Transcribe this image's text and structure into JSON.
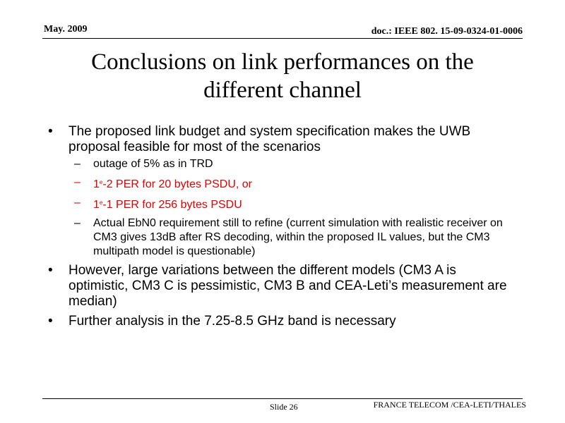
{
  "header": {
    "date": "May. 2009",
    "doc_id": "doc.: IEEE 802. 15-09-0324-01-0006"
  },
  "title": {
    "line1": "Conclusions on link performances on the",
    "line2": "different channel"
  },
  "bullets": [
    {
      "marker": "•",
      "text": "The proposed link budget and system specification makes the UWB proposal feasible for most of the scenarios",
      "subitems": [
        {
          "marker": "–",
          "text": " outage of 5% as in TRD"
        },
        {
          "marker": "–",
          "pre": "1",
          "sup": "e",
          "post": "-2  PER for 20 bytes PSDU, or",
          "color": "#e00000"
        },
        {
          "marker": "–",
          "pre": "1",
          "sup": "e",
          "post": "-1 PER for 256 bytes PSDU",
          "color": "#e00000"
        },
        {
          "marker": "–",
          "text": "Actual EbN0 requirement still to refine (current simulation with realistic receiver on CM3 gives 13dB after RS decoding, within the proposed IL values, but the CM3 multipath model is questionable)"
        }
      ]
    },
    {
      "marker": "•",
      "text": "However, large variations between the different models (CM3 A is optimistic, CM3 C is pessimistic, CM3 B and CEA-Leti’s measurement are median)"
    },
    {
      "marker": "•",
      "text": "Further analysis in the 7.25-8.5 GHz band is necessary"
    }
  ],
  "footer": {
    "slide": "Slide 26",
    "org": "FRANCE TELECOM /CEA-LETI/THALES"
  }
}
